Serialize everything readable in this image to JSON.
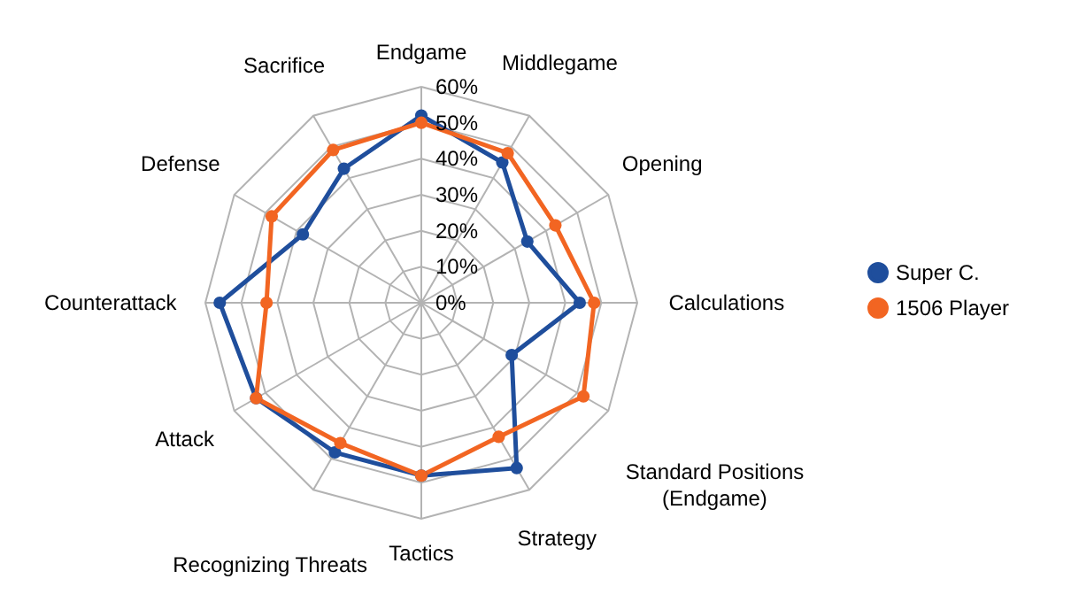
{
  "chart_data": {
    "type": "radar",
    "categories": [
      "Endgame",
      "Middlegame",
      "Opening",
      "Calculations",
      "Standard Positions (Endgame)",
      "Strategy",
      "Tactics",
      "Recognizing Threats",
      "Attack",
      "Counterattack",
      "Defense",
      "Sacrifice"
    ],
    "series": [
      {
        "name": "Super C.",
        "color": "#1f4e9c",
        "values": [
          52,
          45,
          34,
          44,
          29,
          53,
          48,
          48,
          53,
          56,
          38,
          43
        ]
      },
      {
        "name": "1506 Player",
        "color": "#f26522",
        "values": [
          50,
          48,
          43,
          48,
          52,
          43,
          48,
          45,
          53,
          43,
          48,
          49
        ]
      }
    ],
    "ylim": [
      0,
      60
    ],
    "yticks": [
      {
        "value": 0,
        "label": "0%"
      },
      {
        "value": 10,
        "label": "10%"
      },
      {
        "value": 20,
        "label": "20%"
      },
      {
        "value": 30,
        "label": "30%"
      },
      {
        "value": 40,
        "label": "40%"
      },
      {
        "value": 50,
        "label": "50%"
      },
      {
        "value": 60,
        "label": "60%"
      }
    ],
    "grid": true,
    "legend": "right",
    "marker": "circle",
    "line_style": "solid"
  }
}
